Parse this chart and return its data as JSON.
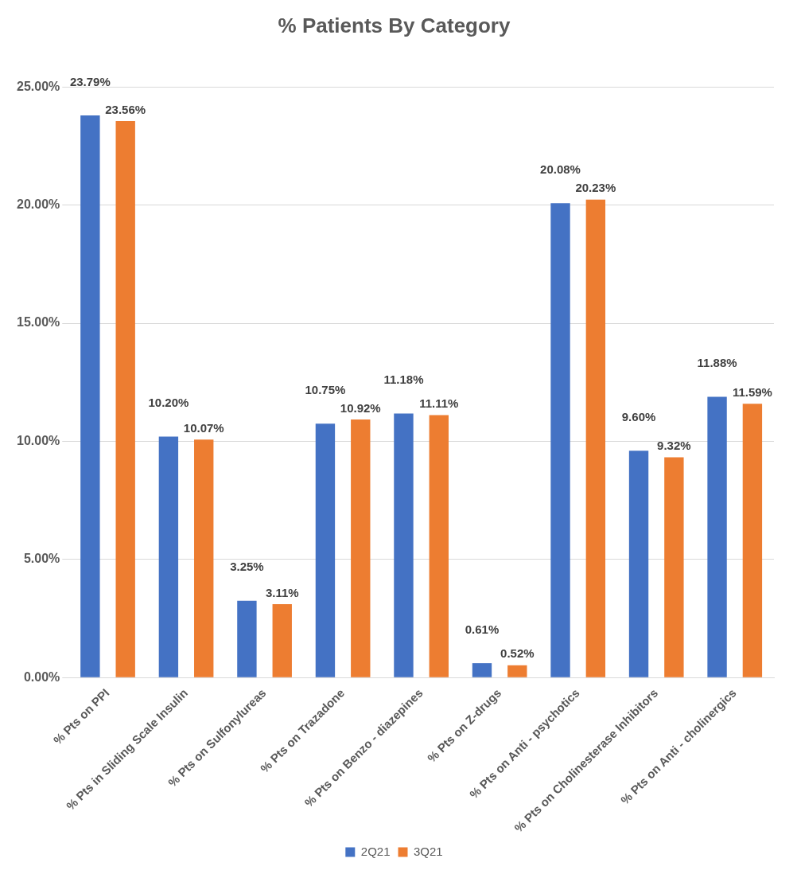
{
  "chart_data": {
    "type": "bar",
    "title": "% Patients By Category",
    "categories": [
      "% Pts on PPI",
      "% Pts in Sliding Scale Insulin",
      "% Pts on Sulfonylureas",
      "% Pts on Trazadone",
      "% Pts on Benzo - diazepines",
      "% Pts on Z-drugs",
      "% Pts on Anti - psychotics",
      "% Pts on Cholinesterase Inhibitors",
      "% Pts on Anti - cholinergics"
    ],
    "series": [
      {
        "name": "2Q21",
        "color": "#4472c4",
        "values": [
          23.79,
          10.2,
          3.25,
          10.75,
          11.18,
          0.61,
          20.08,
          9.6,
          11.88
        ],
        "value_labels": [
          "23.79%",
          "10.20%",
          "3.25%",
          "10.75%",
          "11.18%",
          "0.61%",
          "20.08%",
          "9.60%",
          "11.88%"
        ]
      },
      {
        "name": "3Q21",
        "color": "#ed7d31",
        "values": [
          23.56,
          10.07,
          3.11,
          10.92,
          11.11,
          0.52,
          20.23,
          9.32,
          11.59
        ],
        "value_labels": [
          "23.56%",
          "10.07%",
          "3.11%",
          "10.92%",
          "11.11%",
          "0.52%",
          "20.23%",
          "9.32%",
          "11.59%"
        ]
      }
    ],
    "ylim": [
      0,
      25
    ],
    "yticks": [
      {
        "value": 0,
        "label": "0.00%"
      },
      {
        "value": 5,
        "label": "5.00%"
      },
      {
        "value": 10,
        "label": "10.00%"
      },
      {
        "value": 15,
        "label": "15.00%"
      },
      {
        "value": 20,
        "label": "20.00%"
      },
      {
        "value": 25,
        "label": "25.00%"
      }
    ],
    "grid": "y",
    "legend": "bottom"
  }
}
